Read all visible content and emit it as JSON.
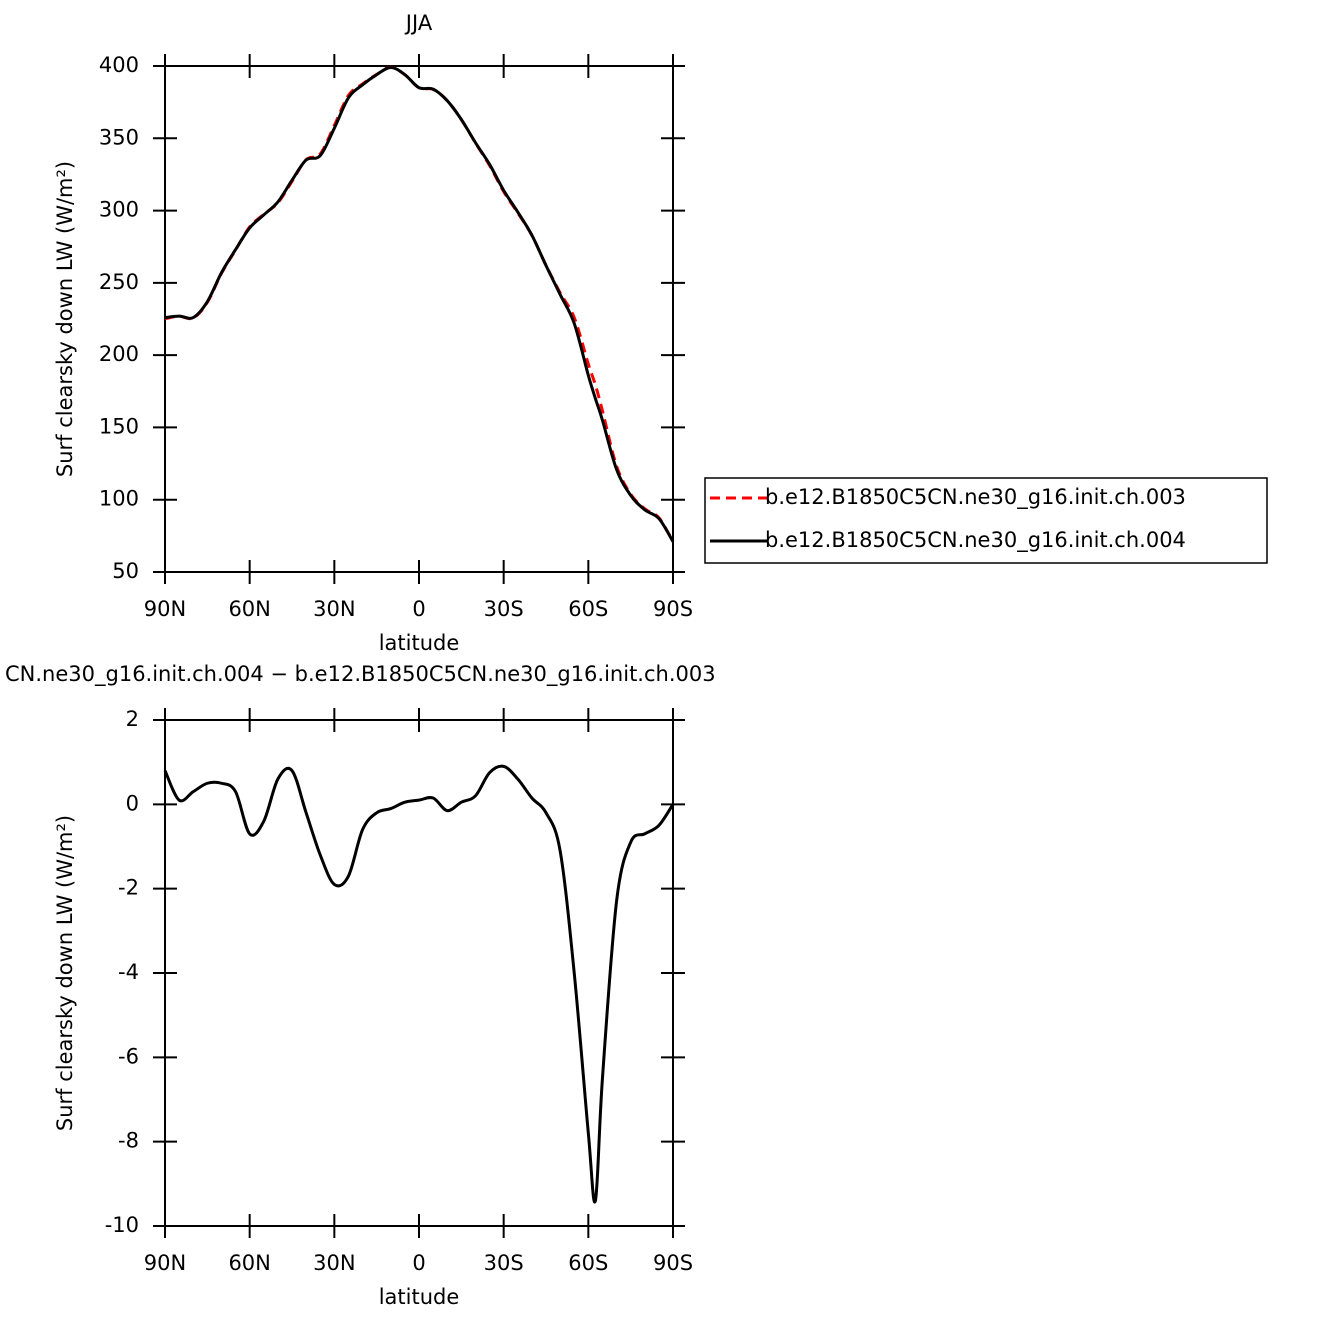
{
  "chart_data": [
    {
      "type": "line",
      "title": "JJA",
      "xlabel": "latitude",
      "ylabel": "Surf clearsky down LW (W/m²)",
      "x": [
        90,
        85,
        80,
        75,
        70,
        65,
        60,
        55,
        50,
        45,
        40,
        35,
        30,
        25,
        20,
        15,
        10,
        5,
        0,
        -5,
        -10,
        -15,
        -20,
        -25,
        -30,
        -35,
        -40,
        -45,
        -50,
        -55,
        -60,
        -62.5,
        -65,
        -70,
        -75,
        -80,
        -85,
        -90
      ],
      "series": [
        {
          "name": "b.e12.B1850C5CN.ne30_g16.init.ch.003",
          "color": "#ff0000",
          "dashed": true,
          "values": [
            225.2,
            226.9,
            225.7,
            236.5,
            256.5,
            272.7,
            288.7,
            297.4,
            305.4,
            320.2,
            335.2,
            339.2,
            358.9,
            379.7,
            387.6,
            394.2,
            399.1,
            393.95,
            384.9,
            383.85,
            376.15,
            362.95,
            346.8,
            331.25,
            313.1,
            298.4,
            282.85,
            262.2,
            243.1,
            226,
            193.8,
            179.4,
            161.5,
            123.3,
            103.9,
            93.7,
            87.5,
            71
          ]
        },
        {
          "name": "b.e12.B1850C5CN.ne30_g16.init.ch.004",
          "color": "#000000",
          "dashed": false,
          "values": [
            226,
            227,
            226,
            237,
            257,
            273,
            288,
            297,
            306,
            321,
            335,
            338,
            357,
            378,
            387,
            394,
            399,
            394,
            385,
            384,
            376,
            363,
            347,
            332,
            314,
            299,
            283,
            262,
            242,
            222,
            186,
            170,
            155,
            121,
            103,
            93,
            87,
            71
          ]
        }
      ],
      "xlim": [
        90,
        -90
      ],
      "xticks": [
        {
          "value": 90,
          "label": "90N"
        },
        {
          "value": 60,
          "label": "60N"
        },
        {
          "value": 30,
          "label": "30N"
        },
        0,
        {
          "value": -30,
          "label": "30S"
        },
        {
          "value": -60,
          "label": "60S"
        },
        {
          "value": -90,
          "label": "90S"
        }
      ],
      "ylim": [
        50,
        400
      ],
      "yticks": [
        50,
        100,
        150,
        200,
        250,
        300,
        350,
        400
      ],
      "legend": "right"
    },
    {
      "type": "line",
      "title": "CN.ne30_g16.init.ch.004 − b.e12.B1850C5CN.ne30_g16.init.ch.003",
      "xlabel": "latitude",
      "ylabel": "Surf clearsky down LW (W/m²)",
      "x": [
        90,
        85,
        80,
        75,
        70,
        65,
        60,
        55,
        50,
        45,
        40,
        35,
        30,
        25,
        20,
        15,
        10,
        5,
        0,
        -5,
        -10,
        -15,
        -20,
        -25,
        -30,
        -35,
        -40,
        -45,
        -50,
        -55,
        -60,
        -62.5,
        -65,
        -70,
        -75,
        -80,
        -85,
        -90
      ],
      "series": [
        {
          "color": "#000000",
          "dashed": false,
          "values": [
            0.8,
            0.1,
            0.3,
            0.5,
            0.5,
            0.3,
            -0.7,
            -0.4,
            0.6,
            0.8,
            -0.2,
            -1.2,
            -1.9,
            -1.7,
            -0.6,
            -0.2,
            -0.1,
            0.05,
            0.1,
            0.15,
            -0.15,
            0.05,
            0.2,
            0.75,
            0.9,
            0.6,
            0.15,
            -0.2,
            -1.1,
            -4.0,
            -7.8,
            -9.4,
            -6.5,
            -2.3,
            -0.9,
            -0.7,
            -0.5,
            0
          ]
        }
      ],
      "xlim": [
        90,
        -90
      ],
      "xticks": [
        {
          "value": 90,
          "label": "90N"
        },
        {
          "value": 60,
          "label": "60N"
        },
        {
          "value": 30,
          "label": "30N"
        },
        0,
        {
          "value": -30,
          "label": "30S"
        },
        {
          "value": -60,
          "label": "60S"
        },
        {
          "value": -90,
          "label": "90S"
        }
      ],
      "ylim": [
        -10,
        2
      ],
      "yticks": [
        -10,
        -8,
        -6,
        -4,
        -2,
        0,
        2
      ]
    }
  ]
}
